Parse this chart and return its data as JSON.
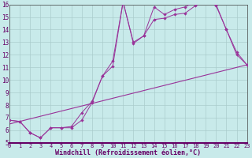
{
  "bg_color": "#c8eaea",
  "plot_bg_color": "#c8eaea",
  "line_color": "#993399",
  "grid_color": "#aacccc",
  "spine_color": "#444444",
  "xlabel": "Windchill (Refroidissement éolien,°C)",
  "xlim": [
    0,
    23
  ],
  "ylim": [
    5,
    16
  ],
  "xticks": [
    0,
    1,
    2,
    3,
    4,
    5,
    6,
    7,
    8,
    9,
    10,
    11,
    12,
    13,
    14,
    15,
    16,
    17,
    18,
    19,
    20,
    21,
    22,
    23
  ],
  "yticks": [
    5,
    6,
    7,
    8,
    9,
    10,
    11,
    12,
    13,
    14,
    15,
    16
  ],
  "line1_x": [
    0,
    1,
    2,
    3,
    4,
    5,
    6,
    7,
    8,
    9,
    10,
    11,
    12,
    13,
    14,
    15,
    16,
    17,
    18,
    19,
    20,
    21,
    22,
    23
  ],
  "line1_y": [
    6.8,
    6.7,
    5.8,
    5.4,
    6.2,
    6.2,
    6.2,
    6.8,
    8.2,
    10.3,
    11.1,
    16.2,
    13.0,
    13.5,
    14.8,
    14.9,
    15.2,
    15.3,
    15.9,
    16.3,
    16.0,
    14.0,
    12.2,
    11.2
  ],
  "line2_x": [
    0,
    1,
    2,
    3,
    4,
    5,
    6,
    7,
    8,
    9,
    10,
    11,
    12,
    13,
    14,
    15,
    16,
    17,
    18,
    19,
    20,
    21,
    22,
    23
  ],
  "line2_y": [
    6.8,
    6.7,
    5.8,
    5.4,
    6.2,
    6.2,
    6.3,
    7.4,
    8.3,
    10.3,
    11.5,
    16.2,
    12.9,
    13.5,
    15.8,
    15.2,
    15.6,
    15.8,
    16.2,
    16.5,
    15.9,
    14.0,
    12.0,
    11.2
  ],
  "line3_x": [
    0,
    23
  ],
  "line3_y": [
    6.5,
    11.2
  ],
  "xbar_color": "#660066",
  "xlabel_color": "#660066",
  "tick_fontsize": 5.0,
  "xlabel_fontsize": 6.0
}
